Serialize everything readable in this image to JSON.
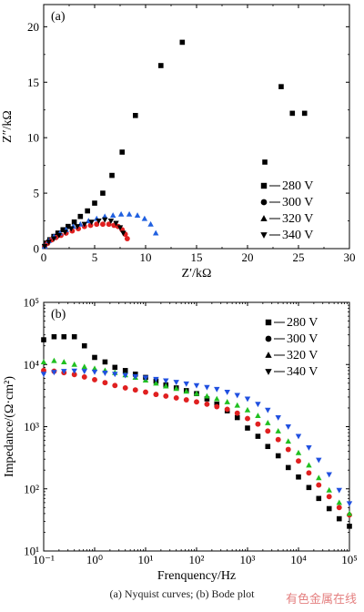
{
  "chart_data": [
    {
      "type": "scatter",
      "panel_label": "(a)",
      "xlabel": "Z′/kΩ",
      "ylabel": "Z″/kΩ",
      "xlim": [
        0,
        30
      ],
      "ylim": [
        0,
        22
      ],
      "xticks": [
        "0",
        "5",
        "10",
        "15",
        "20",
        "25",
        "30"
      ],
      "yticks": [
        "0",
        "5",
        "10",
        "15",
        "20"
      ],
      "legend": "center-right",
      "series": [
        {
          "name": "280 V",
          "marker": "square",
          "color": "#000000",
          "x": [
            0.1,
            0.3,
            0.6,
            1.0,
            1.4,
            1.9,
            2.4,
            3.0,
            3.6,
            4.3,
            5.0,
            5.8,
            6.7,
            7.7,
            9.0,
            11.5,
            13.6,
            21.7,
            23.3,
            24.4,
            25.6
          ],
          "y": [
            0.2,
            0.5,
            0.8,
            1.1,
            1.4,
            1.7,
            2.0,
            2.4,
            2.9,
            3.4,
            4.1,
            5.0,
            6.6,
            8.7,
            12.0,
            16.5,
            18.6,
            7.8,
            14.6,
            12.2,
            12.2
          ]
        },
        {
          "name": "300 V",
          "marker": "circle",
          "color": "#e02020",
          "x": [
            0.1,
            0.4,
            0.8,
            1.2,
            1.7,
            2.2,
            2.8,
            3.4,
            4.0,
            4.6,
            5.2,
            5.8,
            6.4,
            6.9,
            7.3,
            7.7,
            8.0,
            8.2
          ],
          "y": [
            0.2,
            0.5,
            0.8,
            1.0,
            1.2,
            1.4,
            1.6,
            1.8,
            2.0,
            2.1,
            2.2,
            2.2,
            2.2,
            2.1,
            2.0,
            1.7,
            1.3,
            0.9
          ]
        },
        {
          "name": "320 V",
          "marker": "triangle-up",
          "color": "#2060e0",
          "x": [
            0.1,
            0.5,
            1.0,
            1.6,
            2.2,
            2.9,
            3.6,
            4.4,
            5.2,
            6.0,
            6.8,
            7.6,
            8.4,
            9.2,
            9.9,
            10.5,
            11.0
          ],
          "y": [
            0.2,
            0.7,
            1.1,
            1.4,
            1.7,
            2.0,
            2.2,
            2.5,
            2.7,
            2.9,
            3.0,
            3.1,
            3.1,
            3.0,
            2.7,
            2.2,
            1.4
          ]
        },
        {
          "name": "340 V",
          "marker": "triangle-down",
          "color": "#000000",
          "x": [
            0.1,
            0.5,
            1.0,
            1.5,
            2.1,
            2.7,
            3.3,
            4.0,
            4.7,
            5.4,
            6.0,
            6.6,
            7.1,
            7.5,
            7.8
          ],
          "y": [
            0.2,
            0.6,
            0.9,
            1.2,
            1.5,
            1.8,
            2.0,
            2.2,
            2.4,
            2.5,
            2.6,
            2.5,
            2.3,
            1.9,
            1.4
          ]
        }
      ]
    },
    {
      "type": "scatter",
      "panel_label": "(b)",
      "xscale": "log",
      "yscale": "log",
      "xlabel": "Frenquency/Hz",
      "ylabel": "Impedance/(Ω·cm²)",
      "xlim": [
        0.1,
        100000
      ],
      "ylim": [
        10,
        100000
      ],
      "xticks": [
        "10⁻¹",
        "10⁰",
        "10¹",
        "10²",
        "10³",
        "10⁴",
        "10⁵"
      ],
      "yticks": [
        "10¹",
        "10²",
        "10³",
        "10⁴",
        "10⁵"
      ],
      "legend": "top-right",
      "series": [
        {
          "name": "280 V",
          "marker": "square",
          "color": "#000000",
          "x": [
            0.1,
            0.16,
            0.25,
            0.4,
            0.63,
            1,
            1.6,
            2.5,
            4,
            6.3,
            10,
            16,
            25,
            40,
            63,
            100,
            160,
            250,
            400,
            630,
            1000,
            1600,
            2500,
            4000,
            6300,
            10000,
            16000,
            25000,
            40000,
            63000,
            100000
          ],
          "y": [
            25000,
            28000,
            28000,
            28000,
            20000,
            13000,
            11000,
            9000,
            8000,
            7000,
            6200,
            5400,
            4700,
            4200,
            3800,
            3400,
            2800,
            2300,
            1800,
            1400,
            950,
            700,
            480,
            340,
            220,
            155,
            105,
            70,
            48,
            33,
            25
          ]
        },
        {
          "name": "300 V",
          "marker": "circle",
          "color": "#e02020",
          "x": [
            0.1,
            0.16,
            0.25,
            0.4,
            0.63,
            1,
            1.6,
            2.5,
            4,
            6.3,
            10,
            16,
            25,
            40,
            63,
            100,
            160,
            250,
            400,
            630,
            1000,
            1600,
            2500,
            4000,
            6300,
            10000,
            16000,
            25000,
            40000,
            63000,
            100000
          ],
          "y": [
            8000,
            7800,
            7400,
            6900,
            6300,
            5700,
            5100,
            4600,
            4200,
            3900,
            3600,
            3300,
            3100,
            2900,
            2700,
            2500,
            2300,
            2100,
            1900,
            1650,
            1350,
            1100,
            850,
            620,
            430,
            280,
            180,
            115,
            75,
            50,
            38
          ]
        },
        {
          "name": "320 V",
          "marker": "triangle-up",
          "color": "#20c020",
          "x": [
            0.1,
            0.16,
            0.25,
            0.4,
            0.63,
            1,
            1.6,
            2.5,
            4,
            6.3,
            10,
            16,
            25,
            40,
            63,
            100,
            160,
            250,
            400,
            630,
            1000,
            1600,
            2500,
            4000,
            6300,
            10000,
            16000,
            25000,
            40000,
            63000,
            100000
          ],
          "y": [
            11000,
            11500,
            11000,
            10000,
            9200,
            8600,
            8000,
            7400,
            6800,
            6200,
            5600,
            5000,
            4500,
            4100,
            3700,
            3400,
            3100,
            2800,
            2500,
            2200,
            1850,
            1500,
            1150,
            850,
            580,
            380,
            240,
            150,
            95,
            60,
            40
          ]
        },
        {
          "name": "340 V",
          "marker": "triangle-down",
          "color": "#2050e0",
          "x": [
            0.1,
            0.16,
            0.25,
            0.4,
            0.63,
            1,
            1.6,
            2.5,
            4,
            6.3,
            10,
            16,
            25,
            40,
            63,
            100,
            160,
            250,
            400,
            630,
            1000,
            1600,
            2500,
            4000,
            6300,
            10000,
            16000,
            25000,
            40000,
            63000,
            100000
          ],
          "y": [
            7000,
            7500,
            7800,
            7900,
            7800,
            7600,
            7300,
            7000,
            6700,
            6400,
            6100,
            5800,
            5500,
            5200,
            4900,
            4600,
            4300,
            4000,
            3600,
            3200,
            2800,
            2300,
            1850,
            1400,
            1000,
            700,
            460,
            290,
            170,
            95,
            58
          ]
        }
      ]
    }
  ],
  "caption": "(a)   Nyquist curves; (b) Bode plot",
  "watermark": "有色金属在线"
}
